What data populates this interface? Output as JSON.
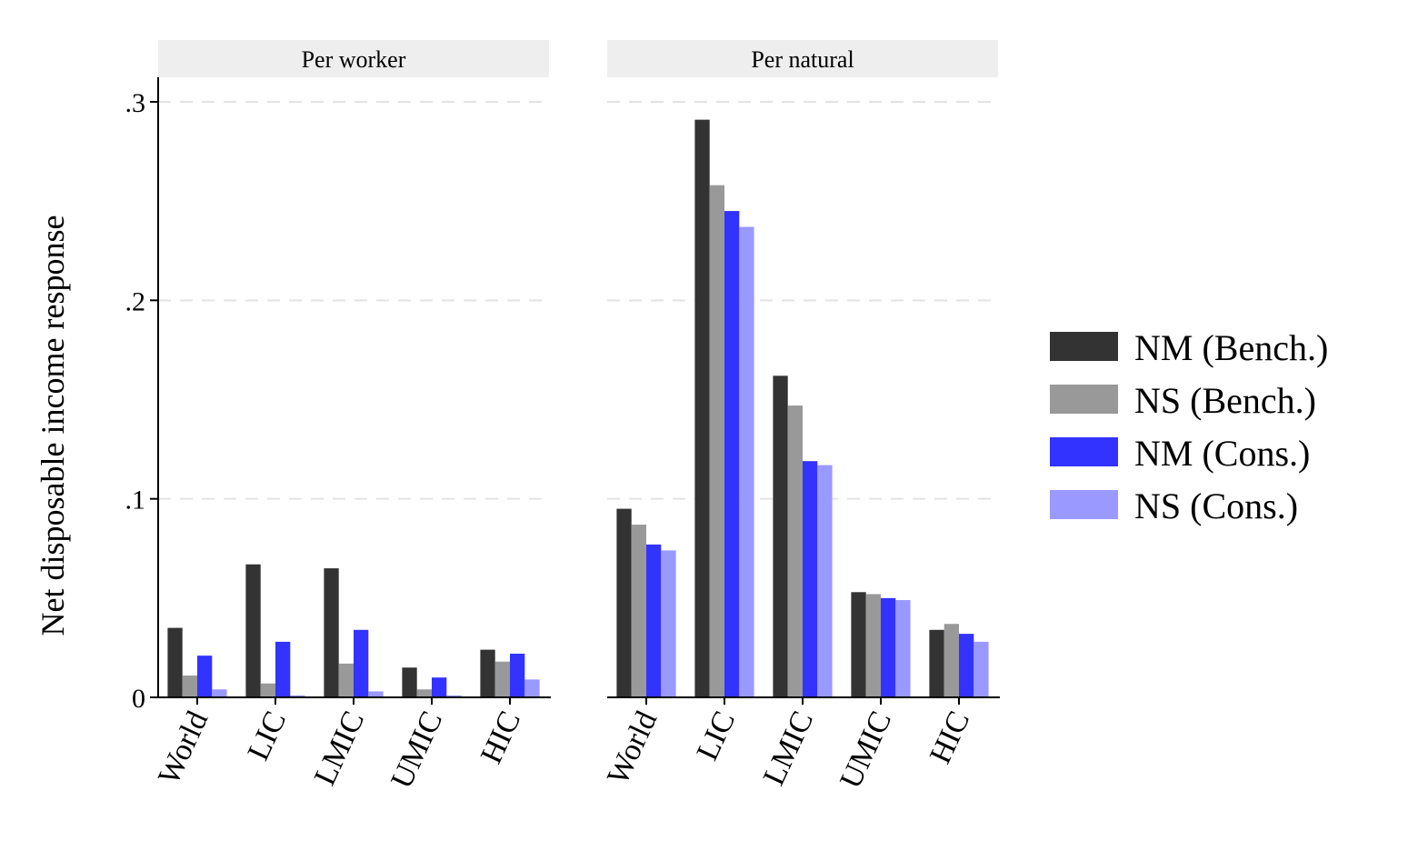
{
  "chart_data": {
    "type": "bar",
    "ylabel": "Net disposable income response",
    "ylim": [
      0,
      0.3
    ],
    "yticks": [
      0,
      0.1,
      0.2,
      0.3
    ],
    "ytick_labels": [
      "0",
      ".1",
      ".2",
      ".3"
    ],
    "grid": "horizontal dashed",
    "legend_position": "right",
    "categories": [
      "World",
      "LIC",
      "LMIC",
      "UMIC",
      "HIC"
    ],
    "series_colors": [
      "#333333",
      "#999999",
      "#3333ff",
      "#9999ff"
    ],
    "series_names": [
      "NM (Bench.)",
      "NS (Bench.)",
      "NM (Cons.)",
      "NS (Cons.)"
    ],
    "panels": [
      {
        "title": "Per worker",
        "series": [
          {
            "name": "NM (Bench.)",
            "values": [
              0.035,
              0.067,
              0.065,
              0.015,
              0.024
            ]
          },
          {
            "name": "NS (Bench.)",
            "values": [
              0.011,
              0.007,
              0.017,
              0.004,
              0.018
            ]
          },
          {
            "name": "NM (Cons.)",
            "values": [
              0.021,
              0.028,
              0.034,
              0.01,
              0.022
            ]
          },
          {
            "name": "NS (Cons.)",
            "values": [
              0.004,
              0.001,
              0.003,
              0.001,
              0.009
            ]
          }
        ]
      },
      {
        "title": "Per natural",
        "series": [
          {
            "name": "NM (Bench.)",
            "values": [
              0.095,
              0.291,
              0.162,
              0.053,
              0.034
            ]
          },
          {
            "name": "NS (Bench.)",
            "values": [
              0.087,
              0.258,
              0.147,
              0.052,
              0.037
            ]
          },
          {
            "name": "NM (Cons.)",
            "values": [
              0.077,
              0.245,
              0.119,
              0.05,
              0.032
            ]
          },
          {
            "name": "NS (Cons.)",
            "values": [
              0.074,
              0.237,
              0.117,
              0.049,
              0.028
            ]
          }
        ]
      }
    ]
  }
}
